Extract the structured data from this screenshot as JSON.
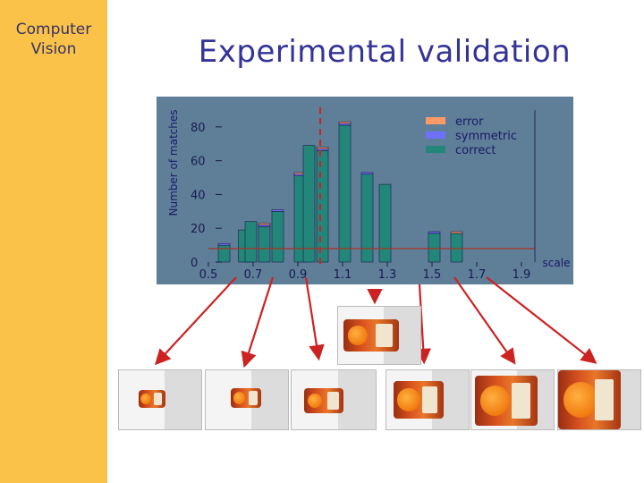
{
  "sidebar": {
    "title_line1": "Computer",
    "title_line2": "Vision"
  },
  "slide": {
    "title": "Experimental validation"
  },
  "chart_data": {
    "type": "bar",
    "title": "",
    "xlabel": "scale",
    "ylabel": "Number of matches",
    "xlim": [
      0.5,
      1.9
    ],
    "ylim": [
      0,
      90
    ],
    "xticks": [
      "0.5",
      "0.7",
      "0.9",
      "1.1",
      "1.3",
      "1.5",
      "1.7",
      "1.9"
    ],
    "yticks": [
      "0",
      "20",
      "40",
      "60",
      "80"
    ],
    "threshold_line": 8,
    "marker_x": 1.0,
    "grid": false,
    "legend_placement": "top-right",
    "background": "#5f7f98",
    "series": [
      {
        "name": "error",
        "color": "#ff9966"
      },
      {
        "name": "symmetric",
        "color": "#7070ff"
      },
      {
        "name": "correct",
        "color": "#22877a"
      }
    ],
    "bars": [
      {
        "x": 0.57,
        "correct": 10,
        "symmetric": 1,
        "error": 0
      },
      {
        "x": 0.66,
        "correct": 19,
        "symmetric": 0,
        "error": 0
      },
      {
        "x": 0.69,
        "correct": 24,
        "symmetric": 0,
        "error": 0
      },
      {
        "x": 0.75,
        "correct": 21,
        "symmetric": 1,
        "error": 1
      },
      {
        "x": 0.81,
        "correct": 30,
        "symmetric": 1,
        "error": 0
      },
      {
        "x": 0.91,
        "correct": 51,
        "symmetric": 1,
        "error": 1
      },
      {
        "x": 0.95,
        "correct": 69,
        "symmetric": 0,
        "error": 0
      },
      {
        "x": 1.01,
        "correct": 66,
        "symmetric": 1,
        "error": 1
      },
      {
        "x": 1.11,
        "correct": 81,
        "symmetric": 1,
        "error": 1
      },
      {
        "x": 1.21,
        "correct": 52,
        "symmetric": 1,
        "error": 0
      },
      {
        "x": 1.29,
        "correct": 46,
        "symmetric": 0,
        "error": 0
      },
      {
        "x": 1.51,
        "correct": 17,
        "symmetric": 1,
        "error": 0
      },
      {
        "x": 1.61,
        "correct": 17,
        "symmetric": 0,
        "error": 1
      }
    ]
  },
  "photos": {
    "top": {
      "name": "reference-image"
    },
    "bottom": [
      {
        "name": "scaled-image-1"
      },
      {
        "name": "scaled-image-2"
      },
      {
        "name": "scaled-image-3"
      },
      {
        "name": "scaled-image-4"
      },
      {
        "name": "scaled-image-5"
      },
      {
        "name": "scaled-image-6"
      }
    ]
  },
  "arrow_color": "#cc2222"
}
